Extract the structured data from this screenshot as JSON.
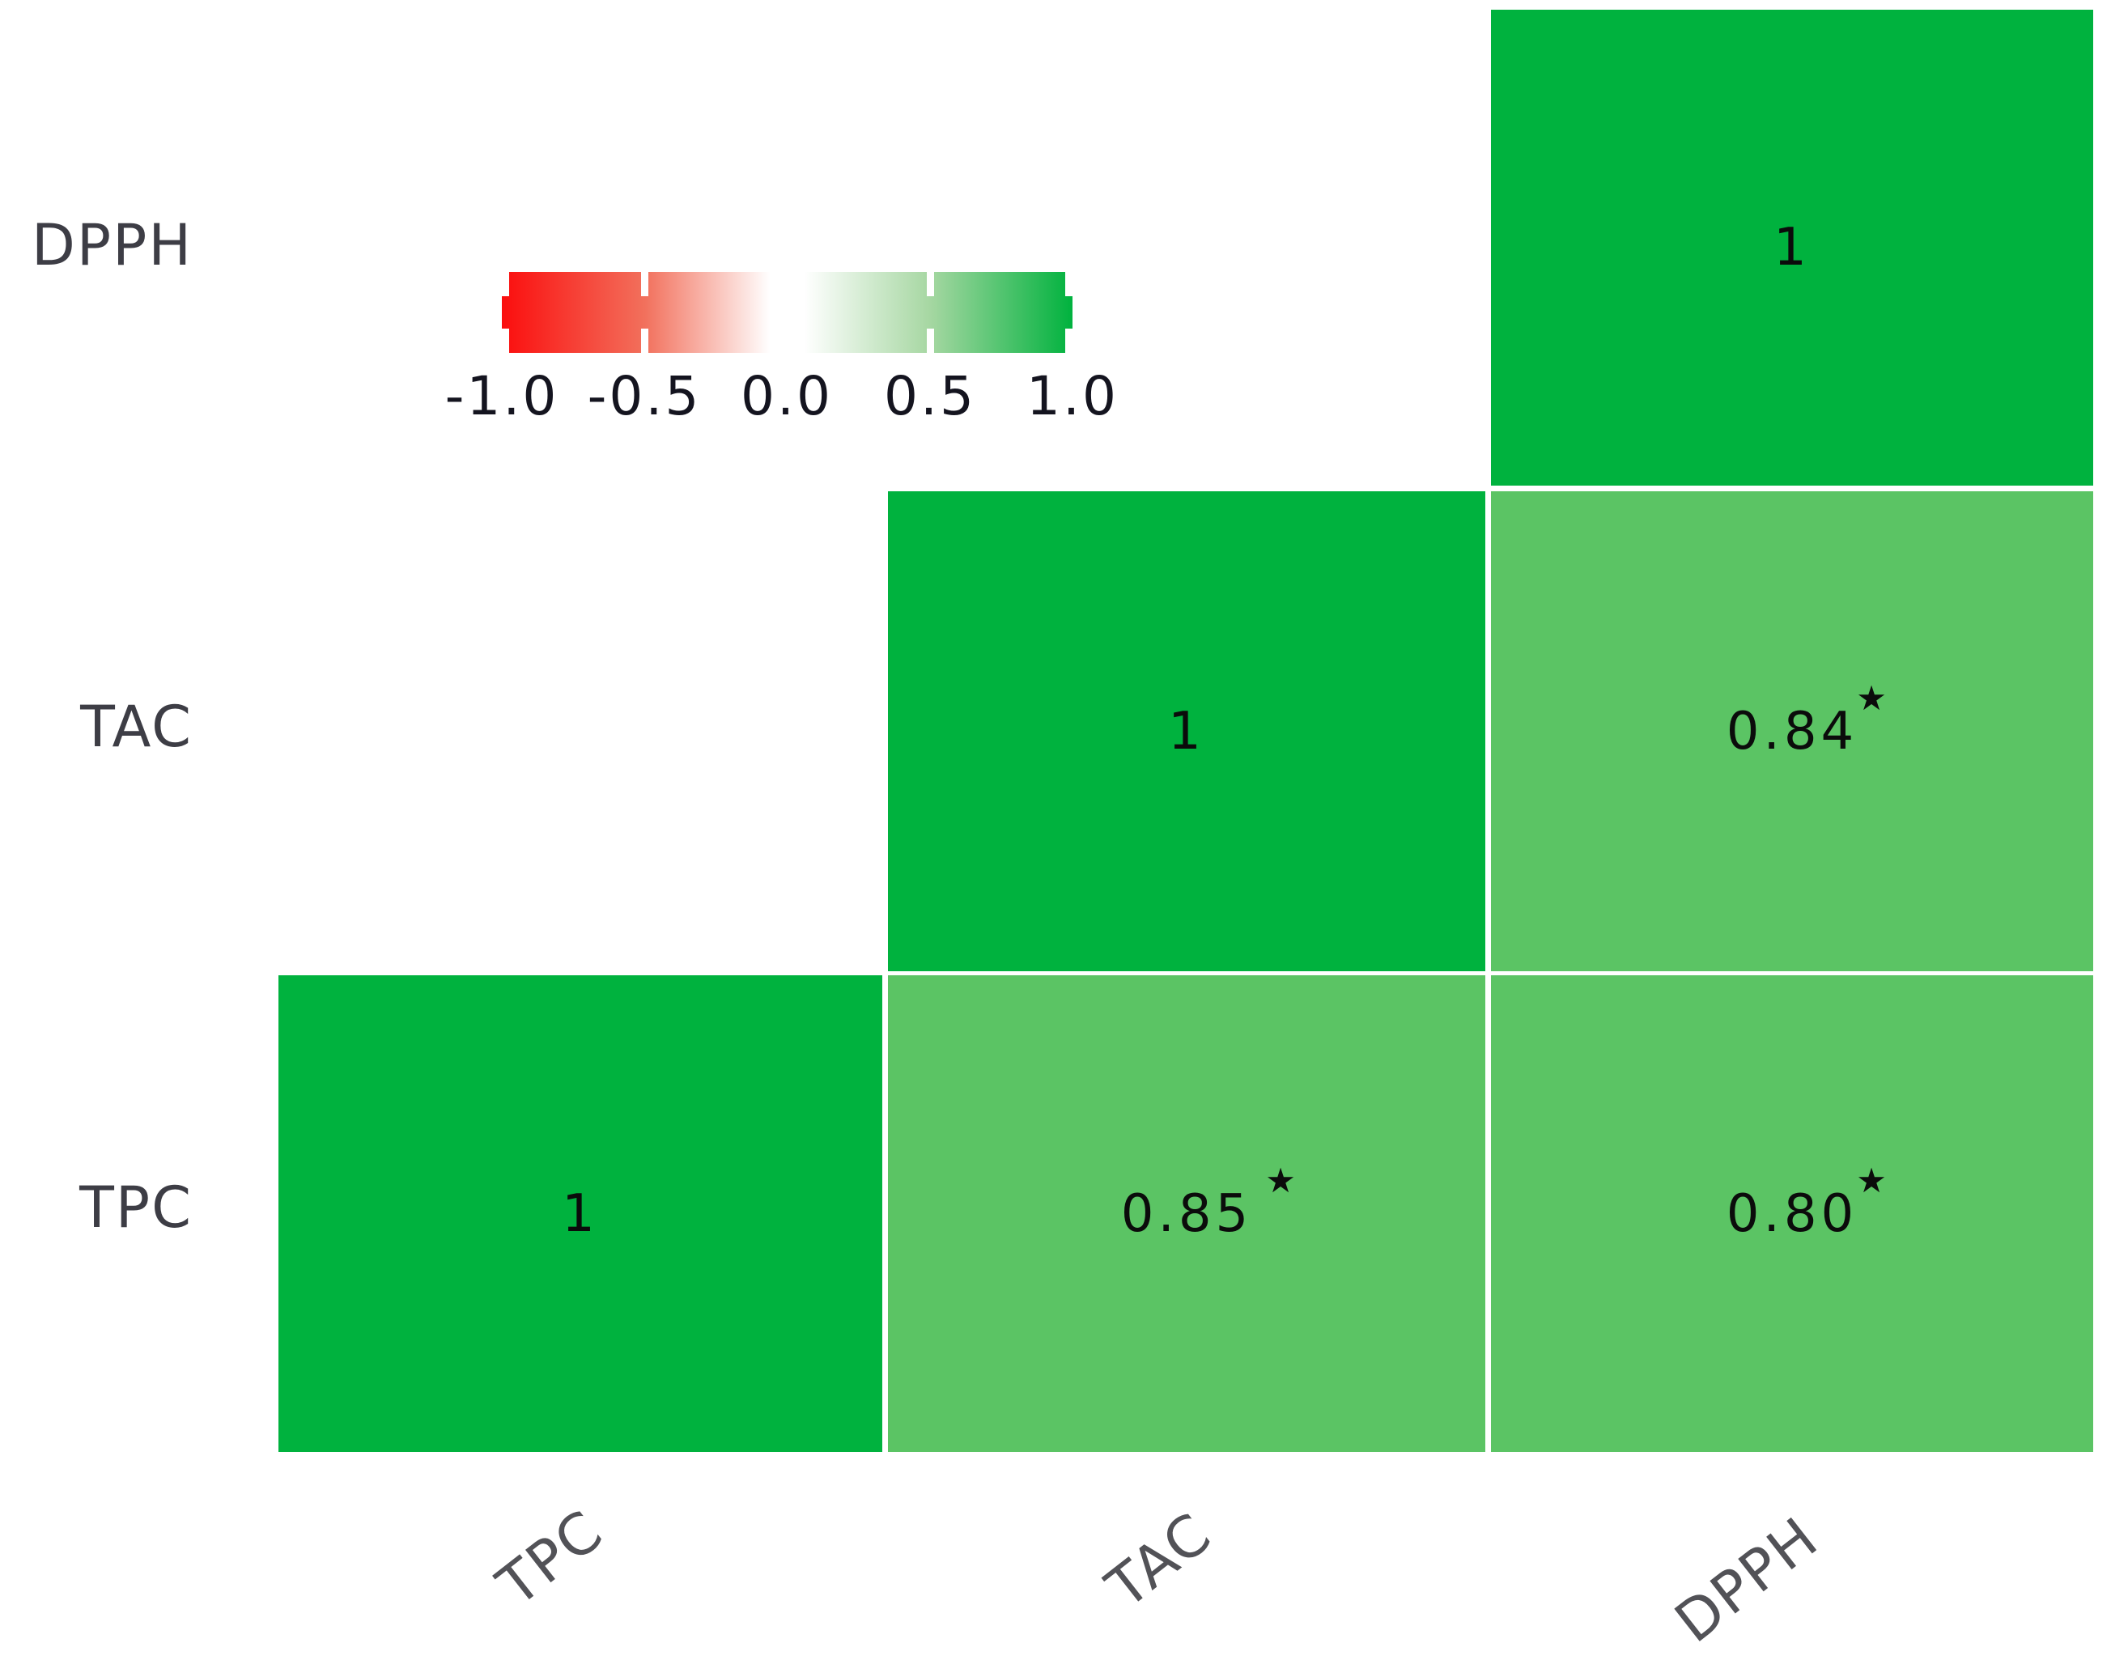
{
  "figure": {
    "background_color": "#ffffff",
    "colors": {
      "correlation_1_green": "#00b23e",
      "correlation_0.8_green": "#5bc464",
      "negative_red": "#fb0e0e",
      "zero_white": "#ffffff",
      "row_label_color": "#3d3d45",
      "col_label_color": "#525257",
      "cell_text_color": "#0b0b0b"
    }
  },
  "chart_data": {
    "type": "heatmap",
    "subtype": "lower-triangle correlation matrix (correlogram)",
    "title": "",
    "variables": [
      "TPC",
      "TAC",
      "DPPH"
    ],
    "x_axis_labels": [
      "TPC",
      "TAC",
      "DPPH"
    ],
    "y_axis_labels_top_to_bottom": [
      "DPPH",
      "TAC",
      "TPC"
    ],
    "significance_marker": "★",
    "cells": [
      {
        "row": "DPPH",
        "col": "DPPH",
        "value": 1,
        "label": "1",
        "significant": false,
        "color": "#00b23e"
      },
      {
        "row": "TAC",
        "col": "TAC",
        "value": 1,
        "label": "1",
        "significant": false,
        "color": "#00b23e"
      },
      {
        "row": "TAC",
        "col": "DPPH",
        "value": 0.84,
        "label": "0.84",
        "significant": true,
        "color": "#5bc464"
      },
      {
        "row": "TPC",
        "col": "TPC",
        "value": 1,
        "label": "1",
        "significant": false,
        "color": "#00b23e"
      },
      {
        "row": "TPC",
        "col": "TAC",
        "value": 0.85,
        "label": "0.85",
        "significant": true,
        "color": "#5bc464"
      },
      {
        "row": "TPC",
        "col": "DPPH",
        "value": 0.8,
        "label": "0.80",
        "significant": true,
        "color": "#5bc464"
      }
    ],
    "colorbar": {
      "orientation": "horizontal",
      "position": "top-left area of figure",
      "min": -1.0,
      "max": 1.0,
      "tick_labels": [
        "-1.0",
        "-0.5",
        "0.0",
        "0.5",
        "1.0"
      ],
      "gradient_stops": [
        "#fb0e0e",
        "#ffffff",
        "#00b23e"
      ]
    },
    "grid": false,
    "legend_position": "top-left"
  }
}
